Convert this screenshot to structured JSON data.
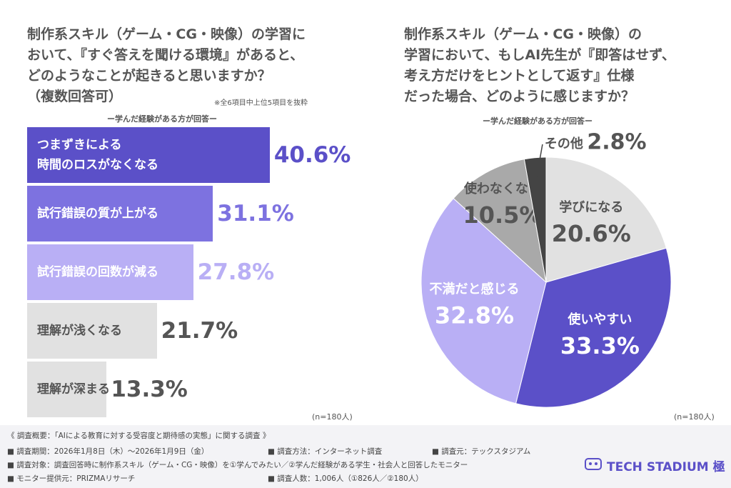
{
  "chart_data": [
    {
      "type": "hbar",
      "title": "制作系スキル（ゲーム・CG・映像）の学習に\nおいて、『すぐ答えを聞ける環境』があると、\nどのようなことが起きると思いますか？\n（複数回答可）",
      "note": "※全6項目中上位5項目を抜粋",
      "subtitle": "ー学んだ経験がある方が回答ー",
      "categories": [
        "つまずきによる\n時間のロスがなくなる",
        "試行錯誤の質が上がる",
        "試行錯誤の回数が減る",
        "理解が浅くなる",
        "理解が深まる"
      ],
      "values": [
        40.6,
        31.1,
        27.8,
        21.7,
        13.3
      ],
      "value_labels": [
        "40.6%",
        "31.1%",
        "27.8%",
        "21.7%",
        "13.3%"
      ],
      "colors": [
        "#5b50c8",
        "#7d72e0",
        "#b9aff5",
        "#e1e1e1",
        "#e1e1e1"
      ],
      "label_colors": [
        "#ffffff",
        "#ffffff",
        "#ffffff",
        "#555555",
        "#555555"
      ],
      "value_label_colors": [
        "#5b50c8",
        "#7d72e0",
        "#b9aff5",
        "#555555",
        "#555555"
      ],
      "sample": "(n=180人)"
    },
    {
      "type": "pie",
      "title": "制作系スキル（ゲーム・CG・映像）の\n学習において、もしAI先生が『即答はせず、\n考え方だけをヒントとして返す』仕様\nだった場合、どのように感じますか？",
      "subtitle": "ー学んだ経験がある方が回答ー",
      "categories": [
        "学びになる",
        "使いやすい",
        "不満だと感じる",
        "使わなくなる",
        "その他"
      ],
      "values": [
        20.6,
        33.3,
        32.8,
        10.5,
        2.8
      ],
      "value_labels": [
        "20.6%",
        "33.3%",
        "32.8%",
        "10.5%",
        "2.8%"
      ],
      "colors": [
        "#e1e1e1",
        "#5b50c8",
        "#b9aff5",
        "#a9a9a9",
        "#444444"
      ],
      "label_colors": [
        "#555555",
        "#ffffff",
        "#ffffff",
        "#555555",
        "#555555"
      ],
      "sample": "(n=180人)"
    }
  ],
  "footer": {
    "heading": "《 調査概要：「AIによる教育に対する受容度と期待感の実態」に関する調査 》",
    "items": [
      "■ 調査期間：2026年1月8日（木）～2026年1月9日（金）",
      "■ 調査方法：インターネット調査",
      "■ 調査元：テックスタジアム",
      "■ 調査対象：調査回答時に制作系スキル（ゲーム・CG・映像）を①学んでみたい／②学んだ経験がある学生・社会人と回答したモニター",
      "■ モニター提供元：PRIZMAリサーチ",
      "■ 調査人数：1,006人（①826人／②180人）"
    ],
    "logo": "TECH STADIUM 極"
  }
}
